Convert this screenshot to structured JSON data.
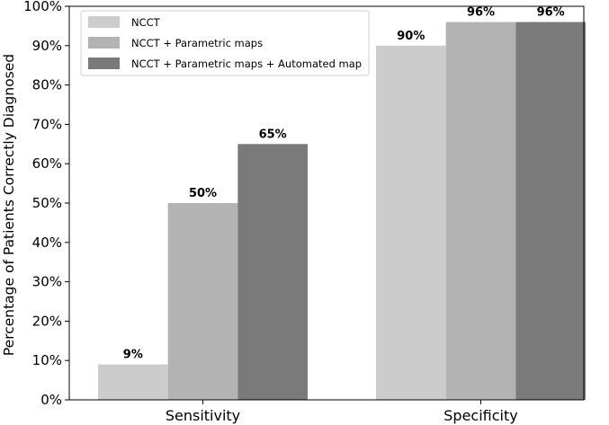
{
  "chart_data": {
    "type": "bar",
    "title": "",
    "xlabel": "",
    "ylabel": "Percentage of Patients Correctly Diagnosed",
    "categories": [
      "Sensitivity",
      "Specificity"
    ],
    "series": [
      {
        "name": "NCCT",
        "values": [
          9,
          90
        ],
        "labels": [
          "9%",
          "90%"
        ],
        "color": "#cccccc"
      },
      {
        "name": "NCCT + Parametric maps",
        "values": [
          50,
          96
        ],
        "labels": [
          "50%",
          "96%"
        ],
        "color": "#b3b3b3"
      },
      {
        "name": "NCCT + Parametric maps + Automated map",
        "values": [
          65,
          96
        ],
        "labels": [
          "65%",
          "96%"
        ],
        "color": "#7a7a7a"
      }
    ],
    "ylim": [
      0,
      100
    ],
    "yticks": [
      0,
      10,
      20,
      30,
      40,
      50,
      60,
      70,
      80,
      90,
      100
    ],
    "ytick_labels": [
      "0%",
      "10%",
      "20%",
      "30%",
      "40%",
      "50%",
      "60%",
      "70%",
      "80%",
      "90%",
      "100%"
    ],
    "grid": false,
    "legend_position": "top-left"
  }
}
